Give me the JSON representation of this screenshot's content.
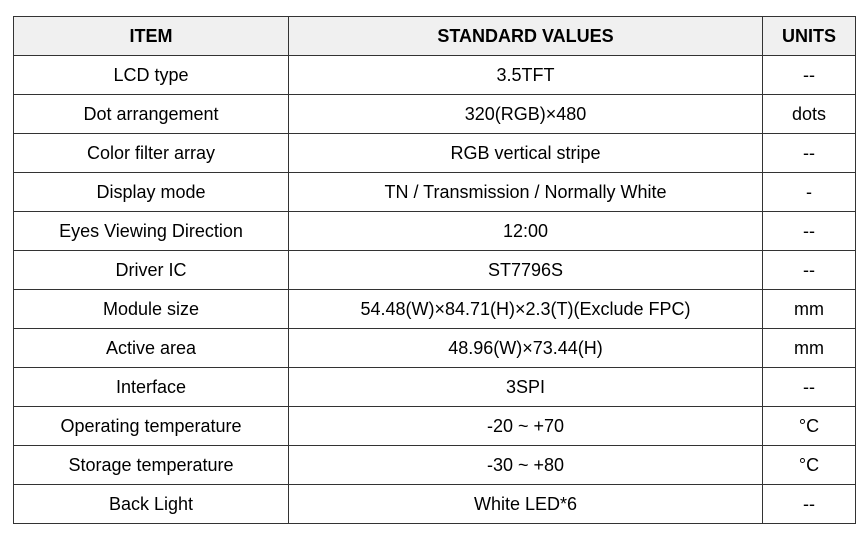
{
  "table": {
    "header": [
      "ITEM",
      "STANDARD VALUES",
      "UNITS"
    ],
    "rows": [
      [
        "LCD type",
        "3.5TFT",
        "--"
      ],
      [
        "Dot arrangement",
        "320(RGB)×480",
        "dots"
      ],
      [
        "Color filter array",
        "RGB vertical stripe",
        "--"
      ],
      [
        "Display mode",
        "TN / Transmission / Normally White",
        "-"
      ],
      [
        "Eyes Viewing Direction",
        "12:00",
        "--"
      ],
      [
        "Driver IC",
        "ST7796S",
        "--"
      ],
      [
        "Module size",
        "54.48(W)×84.71(H)×2.3(T)(Exclude FPC)",
        "mm"
      ],
      [
        "Active area",
        "48.96(W)×73.44(H)",
        "mm"
      ],
      [
        "Interface",
        "3SPI",
        "--"
      ],
      [
        "Operating temperature",
        "-20 ~ +70",
        "°C"
      ],
      [
        "Storage temperature",
        "-30 ~ +80",
        "°C"
      ],
      [
        "Back Light",
        "White LED*6",
        "--"
      ]
    ]
  }
}
